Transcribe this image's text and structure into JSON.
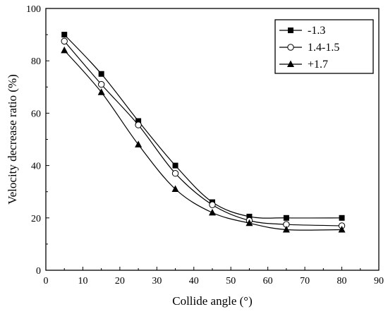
{
  "chart_data": {
    "type": "line",
    "xlabel": "Collide angle (°)",
    "ylabel": "Velocity decrease ratio (%)",
    "xlim": [
      0,
      90
    ],
    "ylim": [
      0,
      100
    ],
    "xticks": [
      0,
      10,
      20,
      30,
      40,
      50,
      60,
      70,
      80,
      90
    ],
    "yticks": [
      0,
      20,
      40,
      60,
      80,
      100
    ],
    "grid": false,
    "legend_position": "top-right",
    "x": [
      5,
      15,
      25,
      35,
      45,
      55,
      65,
      80
    ],
    "series": [
      {
        "name": "-1.3",
        "marker": "square-filled",
        "values": [
          90,
          75,
          57,
          40,
          26,
          20.5,
          20,
          20
        ]
      },
      {
        "name": "1.4-1.5",
        "marker": "circle-open",
        "values": [
          87.5,
          71,
          55.5,
          37,
          25,
          19,
          17.5,
          17
        ]
      },
      {
        "name": "+1.7",
        "marker": "triangle-filled",
        "values": [
          84,
          68,
          48,
          31,
          22,
          18,
          15.5,
          15.5
        ]
      }
    ]
  }
}
